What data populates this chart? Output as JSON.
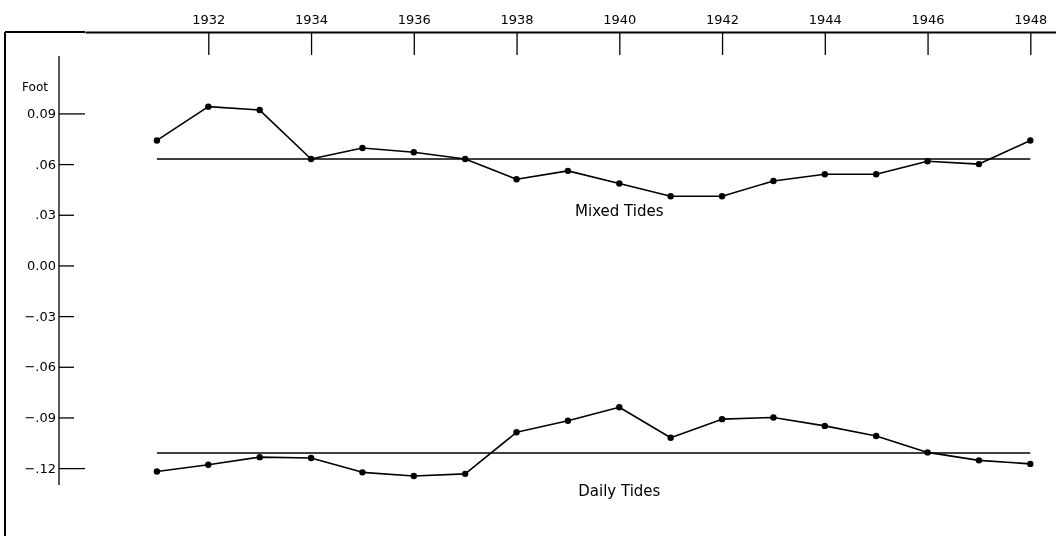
{
  "chart_data": {
    "type": "line",
    "ylabel": "Foot",
    "x": [
      1931,
      1932,
      1933,
      1934,
      1935,
      1936,
      1937,
      1938,
      1939,
      1940,
      1941,
      1942,
      1943,
      1944,
      1945,
      1946,
      1947,
      1948
    ],
    "series": [
      {
        "name": "Mixed Tides",
        "color": "#000000",
        "values": [
          0.074,
          0.094,
          0.092,
          0.063,
          0.0695,
          0.067,
          0.063,
          0.051,
          0.056,
          0.0485,
          0.041,
          0.041,
          0.05,
          0.054,
          0.054,
          0.0617,
          0.06,
          0.074
        ]
      },
      {
        "name": "Daily Tides",
        "color": "#000000",
        "values": [
          -0.122,
          -0.118,
          -0.1135,
          -0.114,
          -0.1225,
          -0.1247,
          -0.1234,
          -0.0988,
          -0.092,
          -0.084,
          -0.102,
          -0.091,
          -0.09,
          -0.095,
          -0.101,
          -0.1107,
          -0.1154,
          -0.1175
        ]
      }
    ],
    "ref_lines": [
      {
        "axis": "y",
        "value": 0.063,
        "color": "#000000"
      },
      {
        "axis": "y",
        "value": -0.111,
        "color": "#000000"
      }
    ],
    "xlim": [
      1929.6,
      1948.5
    ],
    "ylim": [
      -0.13,
      0.124
    ],
    "xticks": [
      1932,
      1934,
      1936,
      1938,
      1940,
      1942,
      1944,
      1946,
      1948
    ],
    "yticks": [
      {
        "value": 0.09,
        "label": "0.09"
      },
      {
        "value": 0.06,
        "label": ".06"
      },
      {
        "value": 0.03,
        "label": ".03"
      },
      {
        "value": 0,
        "label": "0.00"
      },
      {
        "value": -0.03,
        "label": "−.03"
      },
      {
        "value": -0.06,
        "label": "−.06"
      },
      {
        "value": -0.09,
        "label": "−.09"
      },
      {
        "value": -0.12,
        "label": "−.12"
      }
    ],
    "grid": false,
    "legend": false,
    "marker": "circle",
    "line_style": "solid"
  }
}
